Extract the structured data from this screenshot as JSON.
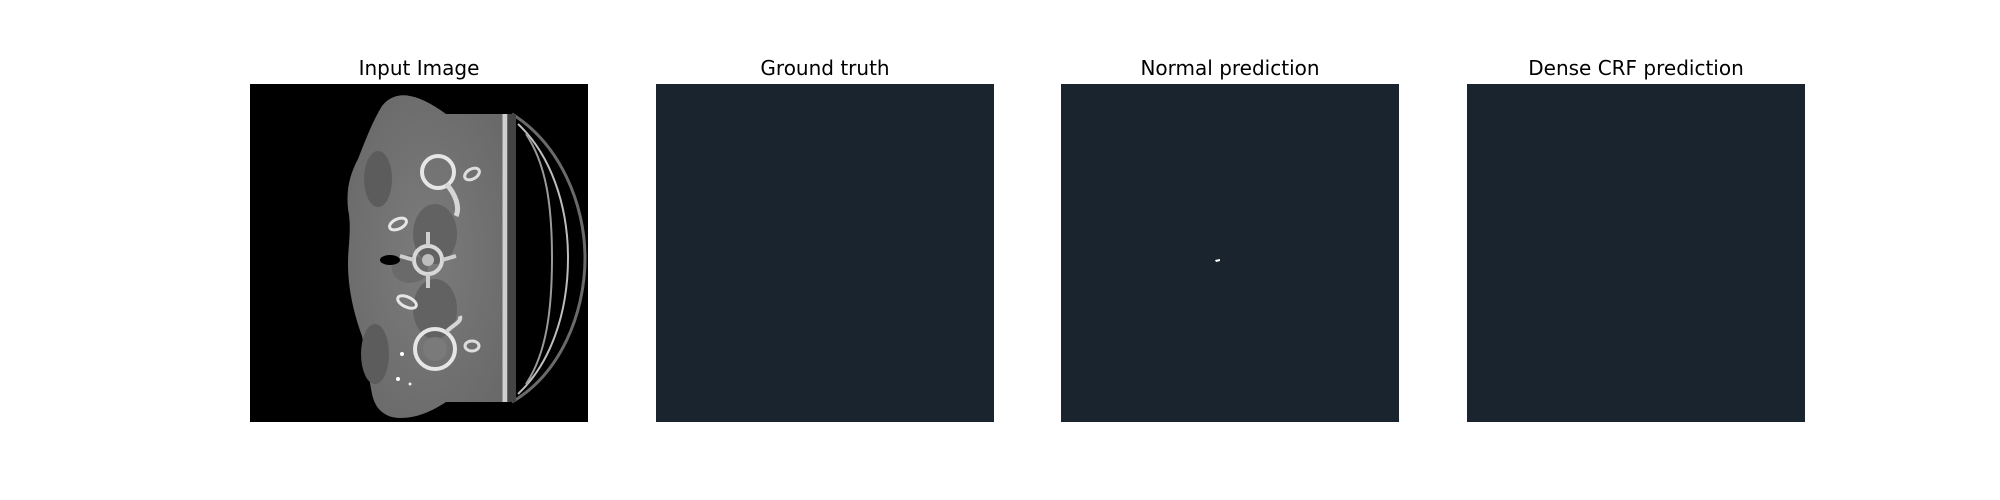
{
  "panels": [
    {
      "title": "Input Image",
      "kind": "ct-scan",
      "background": "#000000"
    },
    {
      "title": "Ground truth",
      "kind": "mask",
      "background": "#19242f"
    },
    {
      "title": "Normal prediction",
      "kind": "mask",
      "background": "#19242f",
      "marker_color": "#ffffff"
    },
    {
      "title": "Dense CRF prediction",
      "kind": "mask",
      "background": "#19242f"
    }
  ]
}
